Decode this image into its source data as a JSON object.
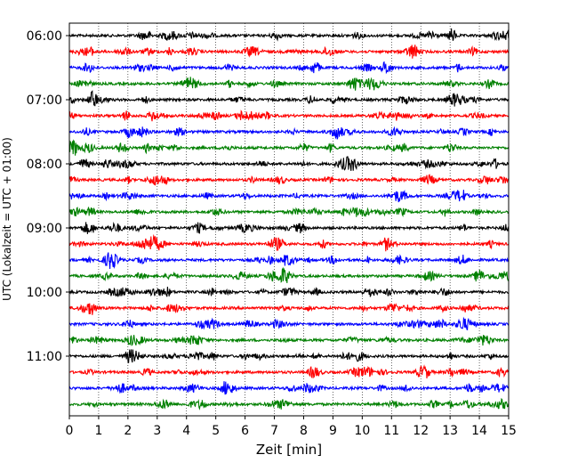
{
  "chart_data": {
    "type": "line",
    "subtype": "helicorder",
    "xlabel": "Zeit  [min]",
    "ylabel": "UTC (Lokalzeit = UTC + 01:00)",
    "xlim": [
      0,
      15
    ],
    "x_ticks": [
      "0",
      "1",
      "2",
      "3",
      "4",
      "5",
      "6",
      "7",
      "8",
      "9",
      "10",
      "11",
      "12",
      "13",
      "14",
      "15"
    ],
    "y_ticks": [
      "06:00",
      "07:00",
      "08:00",
      "09:00",
      "10:00",
      "11:00"
    ],
    "y_tick_line_index": [
      0,
      4,
      8,
      12,
      16,
      20
    ],
    "line_minutes": 15,
    "start_time": "06:00",
    "line_count": 24,
    "colors": [
      "#000000",
      "#ff0000",
      "#0000ff",
      "#008000"
    ],
    "grid": {
      "x": "dotted",
      "y": false
    }
  }
}
